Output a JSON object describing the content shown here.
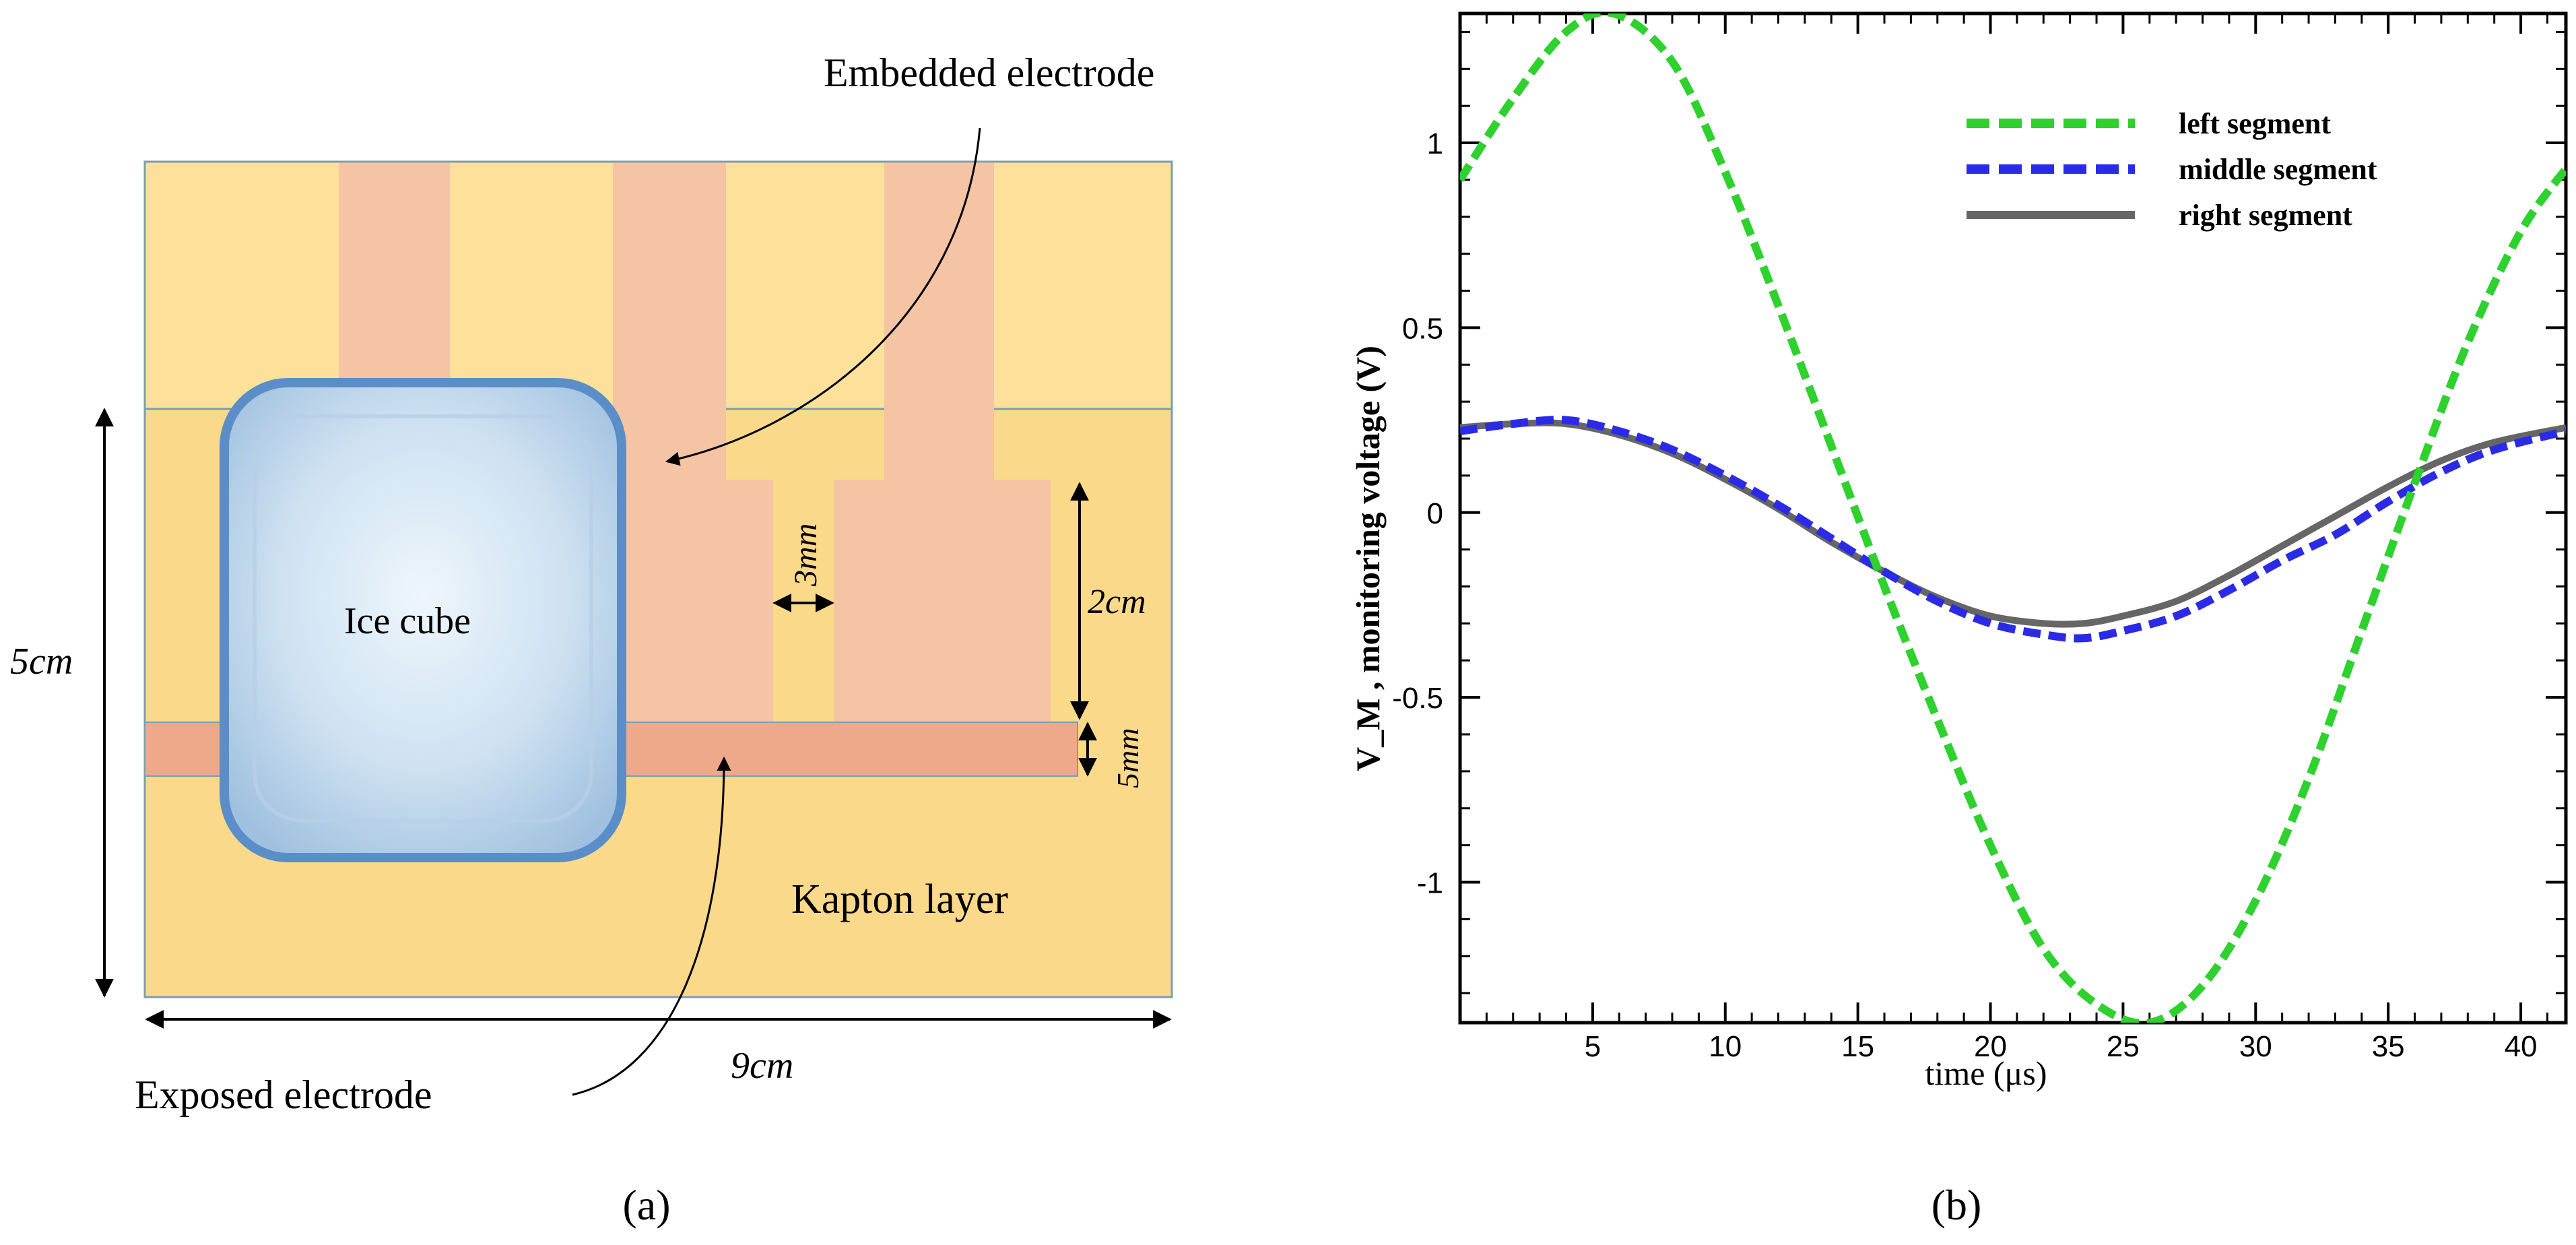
{
  "panel_a": {
    "caption": "(a)",
    "label_embedded": "Embedded  electrode",
    "label_exposed": "Exposed electrode",
    "label_ice": "Ice cube",
    "label_kapton": "Kapton layer",
    "dim_height": "5cm",
    "dim_width": "9cm",
    "dim_gap": "3mm",
    "dim_strip_length": "2cm",
    "dim_strip_width": "5mm",
    "colors": {
      "kapton": "#fbd98a",
      "kapton_light": "#fde19a",
      "embedded": "#f4c4a4",
      "exposed": "#eda98a",
      "ice": "#d7e7f4",
      "ice_border": "#5b8ec9"
    }
  },
  "panel_b": {
    "caption": "(b)"
  },
  "chart_data": {
    "type": "line",
    "title": "",
    "xlabel": "time (μs)",
    "ylabel": "V_M , monitoring voltage (V)",
    "xlim": [
      0,
      41.7
    ],
    "ylim": [
      -1.38,
      1.35
    ],
    "xticks": [
      5,
      10,
      15,
      20,
      25,
      30,
      35,
      40
    ],
    "yticks": [
      1,
      0.5,
      0,
      -0.5,
      -1
    ],
    "ytick_labels": [
      "1",
      "0.5",
      "0",
      "-0.5",
      "-1"
    ],
    "legend_position": "top-right",
    "series": [
      {
        "name": "left segment",
        "color": "#2ed12e",
        "style": "dashed",
        "x": [
          0,
          2,
          4,
          5.8,
          8,
          10,
          12,
          14,
          16,
          18,
          20,
          22,
          24,
          26,
          28,
          30,
          32,
          34,
          36,
          38,
          40,
          41.7
        ],
        "y": [
          0.9,
          1.12,
          1.3,
          1.35,
          1.22,
          0.92,
          0.56,
          0.18,
          -0.2,
          -0.56,
          -0.9,
          -1.18,
          -1.33,
          -1.38,
          -1.28,
          -1.05,
          -0.72,
          -0.32,
          0.08,
          0.46,
          0.76,
          0.93
        ]
      },
      {
        "name": "middle segment",
        "color": "#2b2be6",
        "style": "dashed",
        "x": [
          0,
          2,
          4,
          6,
          8,
          10,
          12,
          14,
          16,
          18,
          20,
          22,
          23.5,
          25,
          27,
          29,
          31,
          33,
          35,
          37,
          39,
          41.7
        ],
        "y": [
          0.22,
          0.24,
          0.25,
          0.22,
          0.17,
          0.1,
          0.02,
          -0.07,
          -0.16,
          -0.24,
          -0.3,
          -0.33,
          -0.34,
          -0.32,
          -0.28,
          -0.21,
          -0.13,
          -0.06,
          0.03,
          0.11,
          0.17,
          0.22
        ]
      },
      {
        "name": "right segment",
        "color": "#666666",
        "style": "solid",
        "x": [
          0,
          2,
          4,
          6,
          8,
          10,
          12,
          14,
          16,
          18,
          20,
          22,
          23.5,
          25,
          27,
          29,
          31,
          33,
          35,
          37,
          39,
          41.7
        ],
        "y": [
          0.23,
          0.24,
          0.24,
          0.21,
          0.16,
          0.09,
          0.01,
          -0.08,
          -0.16,
          -0.23,
          -0.28,
          -0.3,
          -0.3,
          -0.28,
          -0.24,
          -0.17,
          -0.09,
          -0.01,
          0.07,
          0.14,
          0.19,
          0.23
        ]
      }
    ]
  }
}
